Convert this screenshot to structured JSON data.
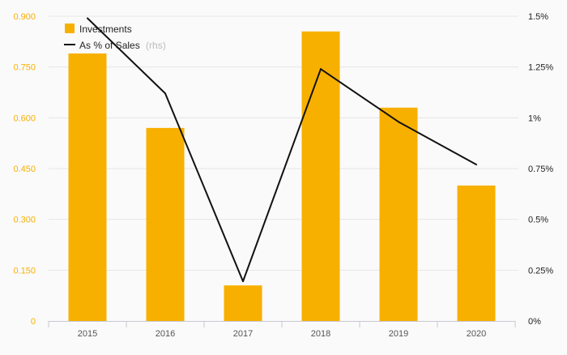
{
  "colors": {
    "bar": "#f8b000",
    "line": "#111111",
    "left_axis_text": "#f8b000",
    "grid": "#e6e6e6",
    "axis": "#c8c8d0"
  },
  "chart_data": {
    "type": "bar",
    "categories": [
      "2015",
      "2016",
      "2017",
      "2018",
      "2019",
      "2020"
    ],
    "series": [
      {
        "name": "Investments",
        "type": "bar",
        "axis": "left",
        "values": [
          0.79,
          0.57,
          0.105,
          0.855,
          0.63,
          0.4
        ]
      },
      {
        "name": "As % of Sales",
        "type": "line",
        "axis": "right",
        "values": [
          1.49,
          1.12,
          0.195,
          1.24,
          0.98,
          0.77
        ]
      }
    ],
    "y_left": {
      "ylim": [
        0,
        0.9
      ],
      "ticks": [
        "0",
        "0.150",
        "0.300",
        "0.450",
        "0.600",
        "0.750",
        "0.900"
      ]
    },
    "y_right": {
      "ylim": [
        0,
        1.5
      ],
      "ticks": [
        "0%",
        "0.25%",
        "0.5%",
        "0.75%",
        "1%",
        "1.25%",
        "1.5%"
      ]
    },
    "legend": {
      "position": "top-left",
      "items": [
        {
          "label": "Investments",
          "suffix": ""
        },
        {
          "label": "As % of Sales",
          "suffix": "(rhs)"
        }
      ]
    },
    "grid": true
  }
}
